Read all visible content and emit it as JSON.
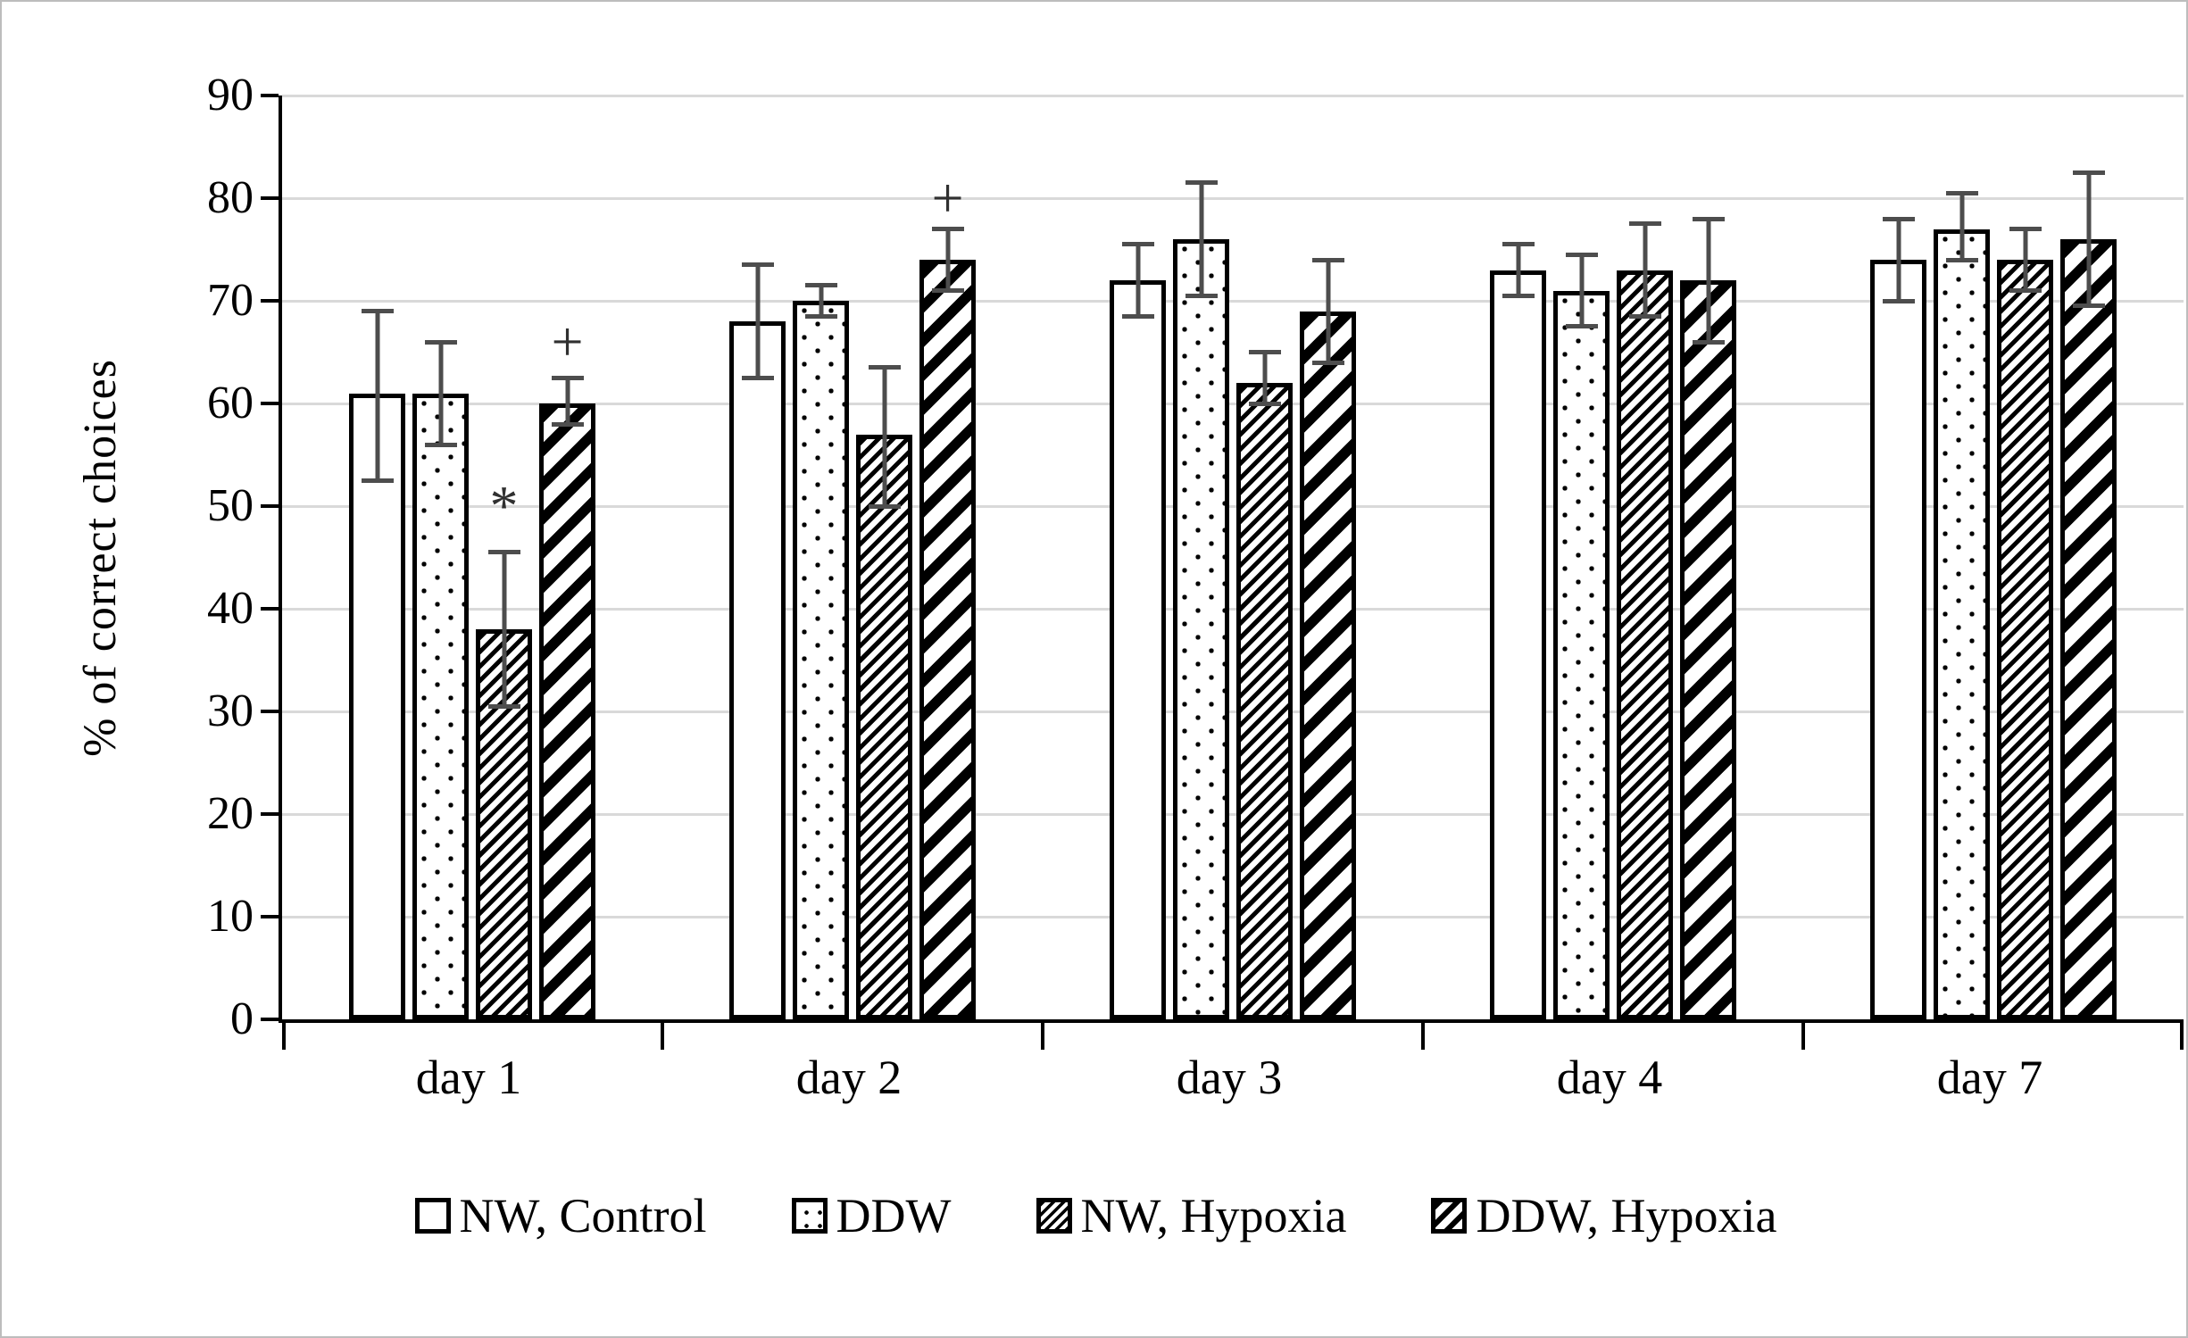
{
  "figure": {
    "border_color": "#bdbdbd",
    "background": "#ffffff",
    "axis_color": "#000000",
    "gridline_color": "#d9d9d9",
    "error_bar_color": "#4d4d4d"
  },
  "chart_data": {
    "type": "bar",
    "title": "",
    "xlabel": "",
    "ylabel": "% of correct choices",
    "ylim": [
      0,
      90
    ],
    "yticks": [
      90,
      80,
      70,
      60,
      50,
      40,
      30,
      20,
      10,
      0
    ],
    "grid": true,
    "legend_position": "bottom",
    "categories": [
      "day 1",
      "day 2",
      "day 3",
      "day 4",
      "day 7"
    ],
    "series": [
      {
        "name": "NW, Control",
        "pattern": "plain",
        "values": [
          61,
          68,
          72,
          73,
          74
        ],
        "error_low": [
          52.5,
          62.5,
          68.5,
          70.5,
          70
        ],
        "error_high": [
          69,
          73.5,
          75.5,
          75.5,
          78
        ]
      },
      {
        "name": "DDW",
        "pattern": "dots",
        "values": [
          61,
          70,
          76,
          71,
          77
        ],
        "error_low": [
          56,
          68.5,
          70.5,
          67.5,
          74
        ],
        "error_high": [
          66,
          71.5,
          81.5,
          74.5,
          80.5
        ]
      },
      {
        "name": "NW, Hypoxia",
        "pattern": "thin-diagonal",
        "values": [
          38,
          57,
          62,
          73,
          74
        ],
        "error_low": [
          30.5,
          50,
          60,
          68.5,
          71
        ],
        "error_high": [
          45.5,
          63.5,
          65,
          77.5,
          77
        ]
      },
      {
        "name": "DDW, Hypoxia",
        "pattern": "wide-diagonal",
        "values": [
          60,
          74,
          69,
          72,
          76
        ],
        "error_low": [
          58,
          71,
          64,
          66,
          69.5
        ],
        "error_high": [
          62.5,
          77,
          74,
          78,
          82.5
        ]
      }
    ],
    "annotations": [
      {
        "category_index": 0,
        "series_index": 2,
        "symbol": "*",
        "value": 50
      },
      {
        "category_index": 0,
        "series_index": 3,
        "symbol": "+",
        "value": 66
      },
      {
        "category_index": 1,
        "series_index": 3,
        "symbol": "+",
        "value": 80
      }
    ]
  }
}
